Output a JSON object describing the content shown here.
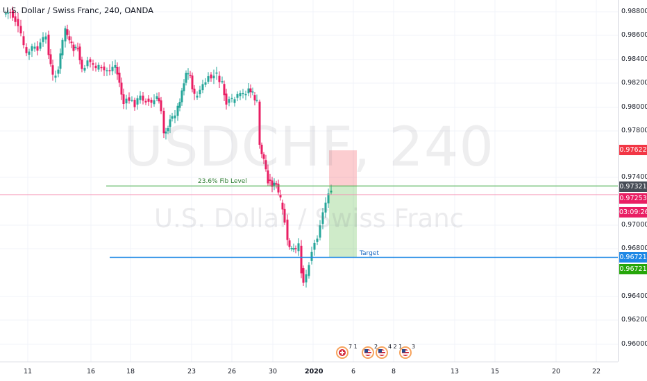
{
  "symbol": {
    "title": "U.S. Dollar / Swiss Franc, 240, OANDA",
    "watermark_ticker": "USDCHF, 240",
    "watermark_name": "U.S. Dollar / Swiss Franc"
  },
  "price_scale": {
    "ticks": [
      "0.98800",
      "0.98600",
      "0.98400",
      "0.98200",
      "0.98000",
      "0.97800",
      "0.97400",
      "0.97000",
      "0.96800",
      "0.96400",
      "0.96200",
      "0.96000"
    ]
  },
  "time_scale": {
    "ticks": [
      "11",
      "16",
      "18",
      "23",
      "26",
      "30",
      "2020",
      "6",
      "8",
      "13",
      "15",
      "20",
      "22"
    ]
  },
  "badges": [
    {
      "name": "badge-stop",
      "text": "0.97622",
      "color": "#f23645"
    },
    {
      "name": "badge-fib",
      "text": "0.97321",
      "color": "#474d57"
    },
    {
      "name": "badge-last-price",
      "text": "0.97253",
      "color": "#e91e63"
    },
    {
      "name": "badge-countdown",
      "text": "03:09:26",
      "color": "#e91e63"
    },
    {
      "name": "badge-target",
      "text": "0.96721",
      "color": "#1e88e5"
    },
    {
      "name": "badge-tp",
      "text": "0.96721",
      "color": "#26a60a"
    }
  ],
  "drawings": {
    "fib_label": "23.6% Fib Level",
    "fib_color": "#4caf50",
    "target_label": "Target",
    "target_color": "#1e88e5",
    "last_price_color": "#f48fb1"
  },
  "events": [
    {
      "type": "swiss",
      "count": "7 1"
    },
    {
      "type": "us",
      "count": "2"
    },
    {
      "type": "us",
      "count": "4 2 1"
    },
    {
      "type": "us",
      "count": "3"
    }
  ],
  "colors": {
    "up": "#26a69a",
    "down": "#e91e63"
  }
}
